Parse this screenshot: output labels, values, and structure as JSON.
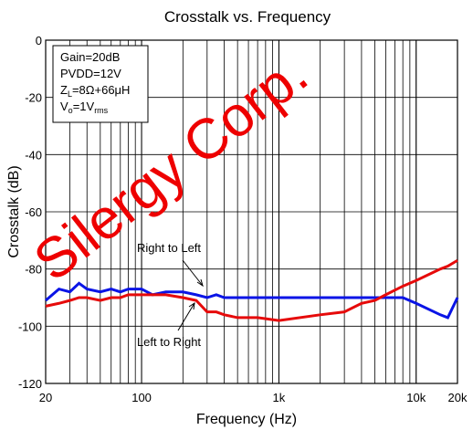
{
  "chart_data": {
    "type": "line",
    "title": "Crosstalk vs. Frequency",
    "xlabel": "Frequency (Hz)",
    "ylabel": "Crosstalk (dB)",
    "x": [
      20,
      25,
      30,
      35,
      40,
      50,
      60,
      70,
      80,
      100,
      120,
      150,
      200,
      250,
      300,
      350,
      400,
      500,
      700,
      1000,
      2000,
      3000,
      4000,
      5000,
      6000,
      8000,
      10000,
      15000,
      17000,
      20000
    ],
    "series": [
      {
        "name": "Right to Left",
        "color": "#0a14e6",
        "values": [
          -91,
          -87,
          -88,
          -85,
          -87,
          -88,
          -87,
          -88,
          -87,
          -87,
          -89,
          -88,
          -88,
          -89,
          -90,
          -89,
          -90,
          -90,
          -90,
          -90,
          -90,
          -90,
          -90,
          -90,
          -90,
          -90,
          -92,
          -96,
          -97,
          -90
        ]
      },
      {
        "name": "Left to Right",
        "color": "#e60a0a",
        "values": [
          -93,
          -92,
          -91,
          -90,
          -90,
          -91,
          -90,
          -90,
          -89,
          -89,
          -89,
          -89,
          -90,
          -91,
          -95,
          -95,
          -96,
          -97,
          -97,
          -98,
          -96,
          -95,
          -92,
          -91,
          -89,
          -86,
          -84,
          -80,
          -79,
          -77
        ]
      }
    ],
    "xlog": true,
    "xlim": [
      20,
      20000
    ],
    "xticks": [
      20,
      100,
      {
        "value": 1000,
        "label": "1k"
      },
      {
        "value": 10000,
        "label": "10k"
      },
      {
        "value": 20000,
        "label": "20k"
      }
    ],
    "ylim": [
      -120,
      0
    ],
    "yticks": [
      -120,
      -100,
      -80,
      -60,
      -40,
      -20,
      0
    ],
    "grid": true,
    "box_lines": [
      [
        "Gain=20dB"
      ],
      [
        "PVDD=12V"
      ],
      [
        "Z",
        "L",
        "=8Ω+66μH"
      ],
      [
        "V",
        "o",
        "=1V",
        "rms"
      ]
    ],
    "watermark": "Silergy Corp."
  }
}
